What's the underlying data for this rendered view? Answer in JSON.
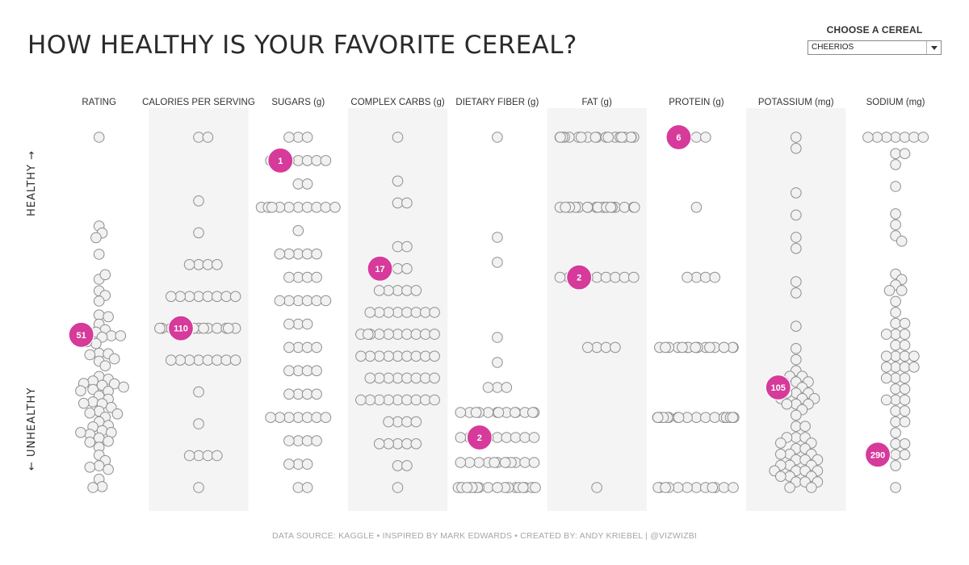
{
  "title": "HOW HEALTHY IS YOUR FAVORITE CEREAL?",
  "selector": {
    "label": "CHOOSE A CEREAL",
    "value": "CHEERIOS"
  },
  "footer": "DATA SOURCE: KAGGLE  •  INSPIRED BY MARK EDWARDS  •  CREATED BY: ANDY KRIEBEL | @VIZWIZBI",
  "axis": {
    "top_label": "HEALTHY →",
    "bottom_label": "← UNHEALTHY"
  },
  "colors": {
    "highlight": "#d63a9a",
    "dot_fill": "#f1f1f1",
    "dot_stroke": "#8e8e8e",
    "band": "#f4f4f4"
  },
  "chart_data": {
    "type": "scatter",
    "layout": "vertical strip plots; each column is one nutrient, values ranked from healthy (top) to unhealthy (bottom)",
    "highlighted_cereal": "CHEERIOS",
    "columns": [
      {
        "name": "RATING",
        "highlight": 51,
        "healthy": "high",
        "values": [
          93.7,
          74.5,
          73,
          68.4,
          72,
          63,
          64,
          60.5,
          59.5,
          58.3,
          55.3,
          54.9,
          53.3,
          52.1,
          51.6,
          51.4,
          50.8,
          50.5,
          50.8,
          49.1,
          49.5,
          47,
          46.9,
          46.7,
          45.8,
          45.3,
          44.3,
          42,
          41.4,
          41,
          40.5,
          40.1,
          40.4,
          39.7,
          39.2,
          38.8,
          38.9,
          37.8,
          37.1,
          36.5,
          36.2,
          36.1,
          35.3,
          34.5,
          34.1,
          33.9,
          33.2,
          32.2,
          31.4,
          31.1,
          30.3,
          29.9,
          29.5,
          29.9,
          28.7,
          28,
          27.8,
          26.7,
          25,
          23.8,
          22.7,
          22.4,
          21.9,
          19.8,
          18.2,
          18
        ]
      },
      {
        "name": "CALORIES PER SERVING",
        "highlight": 110,
        "healthy": "low",
        "values": [
          50,
          50,
          70,
          80,
          90,
          90,
          90,
          90,
          100,
          100,
          100,
          100,
          100,
          100,
          100,
          100,
          110,
          110,
          110,
          110,
          110,
          110,
          110,
          110,
          110,
          110,
          110,
          110,
          110,
          120,
          120,
          120,
          120,
          120,
          120,
          120,
          120,
          130,
          140,
          150,
          150,
          150,
          150,
          160
        ]
      },
      {
        "name": "SUGARS (g)",
        "highlight": 1,
        "healthy": "low",
        "values": [
          0,
          0,
          0,
          1,
          1,
          1,
          1,
          1,
          1,
          1,
          2,
          2,
          3,
          3,
          3,
          3,
          3,
          3,
          3,
          3,
          3,
          3,
          3,
          4,
          5,
          5,
          5,
          5,
          5,
          6,
          6,
          6,
          6,
          7,
          7,
          7,
          7,
          7,
          7,
          8,
          8,
          8,
          9,
          9,
          9,
          9,
          10,
          10,
          10,
          10,
          11,
          11,
          11,
          11,
          12,
          12,
          12,
          12,
          12,
          12,
          12,
          13,
          13,
          13,
          13,
          14,
          14,
          14,
          15,
          15
        ]
      },
      {
        "name": "COMPLEX CARBS (g)",
        "highlight": 17,
        "healthy": "high",
        "values": [
          23,
          21,
          20,
          20,
          18,
          18,
          17,
          17,
          16,
          16,
          16,
          16,
          16,
          15,
          15,
          15,
          15,
          15,
          15,
          15,
          15,
          14,
          14,
          14,
          14,
          14,
          14,
          14,
          14,
          14,
          14,
          13,
          13,
          13,
          13,
          13,
          13,
          13,
          13,
          13,
          12,
          12,
          12,
          12,
          12,
          12,
          12,
          12,
          11,
          11,
          11,
          11,
          11,
          11,
          11,
          11,
          11,
          10,
          10,
          10,
          10,
          9,
          9,
          9,
          9,
          9,
          8,
          8,
          7
        ]
      },
      {
        "name": "DIETARY FIBER (g)",
        "highlight": 2,
        "healthy": "high",
        "values": [
          14,
          10,
          9,
          6,
          5,
          4,
          4,
          4,
          3,
          3,
          3,
          3,
          3,
          3,
          3,
          3,
          3,
          3,
          3,
          3,
          3,
          2,
          2,
          2,
          2,
          2,
          2,
          2,
          2,
          2,
          1,
          1,
          1,
          1,
          1,
          1,
          1,
          1,
          1,
          1,
          1,
          1,
          0,
          0,
          0,
          0,
          0,
          0,
          0,
          0,
          0,
          0,
          0,
          0,
          0,
          0,
          0,
          0,
          0,
          0,
          0,
          0,
          0,
          0
        ]
      },
      {
        "name": "FAT (g)",
        "highlight": 2,
        "healthy": "low",
        "values": [
          0,
          0,
          0,
          0,
          0,
          0,
          0,
          0,
          0,
          0,
          0,
          0,
          0,
          0,
          0,
          0,
          0,
          0,
          0,
          1,
          1,
          1,
          1,
          1,
          1,
          1,
          1,
          1,
          1,
          1,
          1,
          1,
          1,
          1,
          1,
          1,
          1,
          1,
          1,
          1,
          1,
          1,
          1,
          2,
          2,
          2,
          2,
          2,
          2,
          2,
          2,
          2,
          2,
          3,
          3,
          3,
          3,
          5
        ]
      },
      {
        "name": "PROTEIN (g)",
        "highlight": 6,
        "healthy": "high",
        "values": [
          6,
          6,
          5,
          4,
          4,
          4,
          4,
          3,
          3,
          3,
          3,
          3,
          3,
          3,
          3,
          3,
          3,
          3,
          3,
          3,
          3,
          3,
          3,
          3,
          2,
          2,
          2,
          2,
          2,
          2,
          2,
          2,
          2,
          2,
          2,
          2,
          2,
          2,
          2,
          2,
          2,
          2,
          2,
          1,
          1,
          1,
          1,
          1,
          1,
          1,
          1,
          1,
          1,
          1,
          1
        ]
      },
      {
        "name": "POTASSIUM (mg)",
        "highlight": 105,
        "healthy": "high",
        "values": [
          330,
          320,
          280,
          260,
          240,
          230,
          200,
          190,
          160,
          140,
          130,
          120,
          115,
          115,
          110,
          110,
          110,
          105,
          100,
          100,
          100,
          95,
          95,
          95,
          90,
          90,
          90,
          85,
          80,
          70,
          70,
          60,
          60,
          60,
          55,
          55,
          50,
          50,
          45,
          45,
          45,
          40,
          40,
          40,
          35,
          35,
          35,
          30,
          30,
          30,
          30,
          25,
          25,
          25,
          20,
          20,
          20,
          15,
          15
        ]
      },
      {
        "name": "SODIUM (mg)",
        "highlight": 290,
        "healthy": "low",
        "values": [
          0,
          0,
          0,
          0,
          0,
          0,
          0,
          15,
          15,
          25,
          45,
          70,
          80,
          90,
          95,
          125,
          130,
          135,
          140,
          140,
          150,
          160,
          170,
          170,
          180,
          180,
          180,
          190,
          190,
          200,
          200,
          200,
          200,
          210,
          210,
          210,
          210,
          220,
          220,
          220,
          230,
          230,
          240,
          240,
          240,
          250,
          250,
          260,
          260,
          270,
          280,
          280,
          290,
          290,
          300,
          320
        ]
      }
    ]
  }
}
